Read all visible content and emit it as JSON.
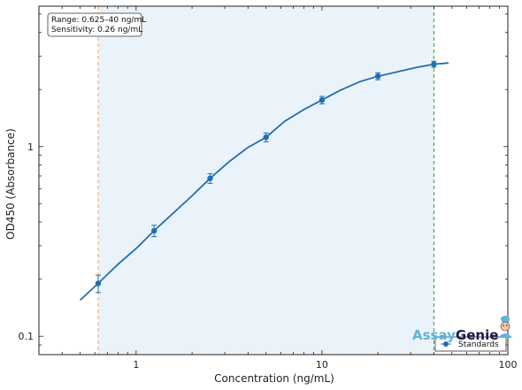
{
  "chart_data": {
    "type": "scatter",
    "xlabel": "Concentration (ng/mL)",
    "ylabel": "OD450 (Absorbance)",
    "xscale": "log",
    "yscale": "log",
    "xlim": [
      0.3,
      100
    ],
    "ylim": [
      0.08,
      5.5
    ],
    "x_ticks": [
      1,
      10,
      100
    ],
    "x_tick_labels": [
      "1",
      "10",
      "100"
    ],
    "y_ticks": [
      0.1,
      1
    ],
    "y_tick_labels": [
      "0.1",
      "1"
    ],
    "grid": false,
    "shaded_range": [
      0.625,
      40
    ],
    "reference_lines": [
      {
        "x": 0.625,
        "color": "#f4a261",
        "style": "dashed"
      },
      {
        "x": 40,
        "color": "#2ca02c",
        "style": "dashed"
      }
    ],
    "annotation": [
      "Range: 0.625–40 ng/mL",
      "Sensitivity: 0.26 ng/mL"
    ],
    "series": [
      {
        "name": "Standards",
        "color": "#1f6fb0",
        "x": [
          0.625,
          1.25,
          2.5,
          5,
          10,
          20,
          40
        ],
        "y": [
          0.19,
          0.36,
          0.68,
          1.12,
          1.76,
          2.35,
          2.72
        ],
        "yerr": [
          0.02,
          0.025,
          0.04,
          0.06,
          0.08,
          0.1,
          0.1
        ]
      }
    ],
    "fit_curve": {
      "color": "#1f6fb0",
      "x_range": [
        0.5,
        48
      ],
      "x": [
        0.5,
        0.625,
        0.8,
        1,
        1.25,
        1.6,
        2,
        2.5,
        3.2,
        4,
        5,
        6.3,
        8,
        10,
        12.5,
        16,
        20,
        25,
        32,
        40,
        48
      ],
      "y": [
        0.155,
        0.19,
        0.24,
        0.29,
        0.36,
        0.45,
        0.55,
        0.68,
        0.84,
        0.99,
        1.12,
        1.36,
        1.57,
        1.76,
        1.98,
        2.2,
        2.35,
        2.47,
        2.61,
        2.72,
        2.76
      ]
    },
    "legend": {
      "position": "bottom-right",
      "entries": [
        "Standards"
      ]
    }
  },
  "logo": {
    "text_part1": "Assay",
    "text_part2": "Genie",
    "color1": "#5ab4e0",
    "color2": "#1a1a4a"
  }
}
